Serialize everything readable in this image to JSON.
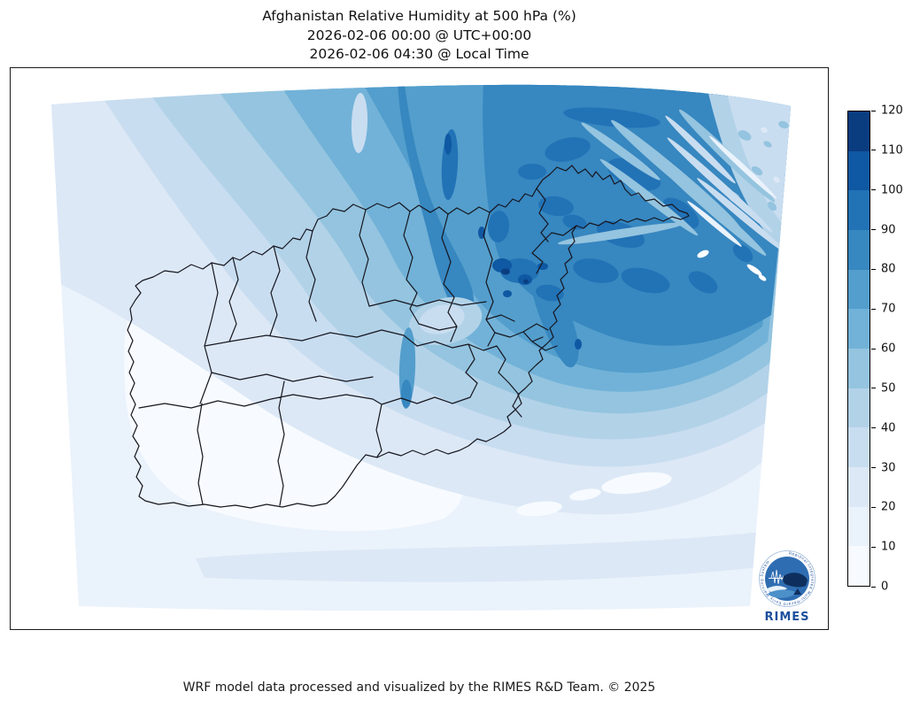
{
  "title": {
    "line1": "Afghanistan Relative Humidity at 500 hPa (%)",
    "line2": "2026-02-06 00:00 @ UTC+00:00",
    "line3": "2026-02-06 04:30 @ Local Time"
  },
  "footer": {
    "credit": "WRF model data processed and visualized by the RIMES R&D Team. © 2025"
  },
  "colorbar": {
    "ticks": [
      "0",
      "10",
      "20",
      "30",
      "40",
      "50",
      "60",
      "70",
      "80",
      "90",
      "100",
      "110",
      "120"
    ],
    "colors": [
      "#f7fbff",
      "#eaf2fb",
      "#dce8f6",
      "#c9ddf0",
      "#b2d2e8",
      "#94c4df",
      "#72b2d8",
      "#539ecc",
      "#3787c0",
      "#2272b6",
      "#0f58a3",
      "#0a3d80"
    ],
    "min": 0,
    "max": 120,
    "step": 10
  },
  "logo": {
    "name": "RIMES",
    "ring_text": "Regional Integrated Multi-Hazard Early Warning System",
    "text_color": "#1d4f9c"
  },
  "chart_data": {
    "type": "heatmap",
    "title": "Afghanistan Relative Humidity at 500 hPa (%)",
    "valid_time_utc": "2026-02-06 00:00 @ UTC+00:00",
    "valid_time_local": "2026-02-06 04:30 @ Local Time",
    "variable": "Relative Humidity",
    "pressure_level": "500 hPa",
    "units": "%",
    "region": "Afghanistan (province boundaries shown)",
    "colormap": "Blues (light = low, dark = high)",
    "scale_range": [
      0,
      120
    ],
    "scale_step": 10,
    "legend_position": "right",
    "spatial_pattern": "Very low humidity (0-20%) over southwestern Afghanistan; values increase toward the north and northeast, with a broad 80-100% maximum over the northeast and dark cores above 100% near the central-east; streaky lighter bands cross the far northeast corner."
  }
}
